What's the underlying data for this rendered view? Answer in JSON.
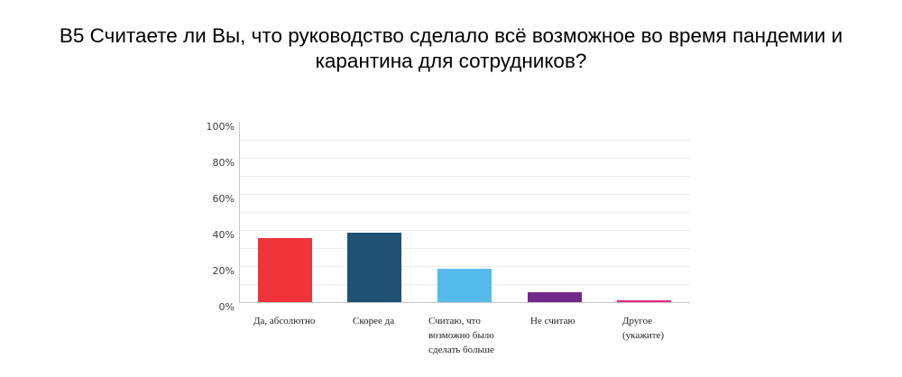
{
  "header": {
    "title_line1": "В5 Считаете ли Вы, что руководство сделало всё возможное во время пандемии и",
    "title_line2": "карантина для сотрудников?"
  },
  "y_axis": {
    "ticks": [
      "100%",
      "80%",
      "60%",
      "40%",
      "20%",
      "0%"
    ]
  },
  "x_axis": {
    "labels": [
      "Да, абсолютно",
      "Скорее да",
      "Считаю, что возможно было сделать больше",
      "Не считаю",
      "Другое (укажите)"
    ]
  },
  "colors": {
    "bar_1": "#ef343a",
    "bar_2": "#1f5175",
    "bar_3": "#55bbea",
    "bar_4": "#712a89",
    "bar_5": "#e5257d"
  },
  "chart_data": {
    "type": "bar",
    "title": "В5 Считаете ли Вы, что руководство сделало всё возможное во время пандемии и карантина для сотрудников?",
    "categories": [
      "Да, абсолютно",
      "Скорее да",
      "Считаю, что возможно было сделать больше",
      "Не считаю",
      "Другое (укажите)"
    ],
    "values": [
      35.5,
      38.5,
      18.6,
      5.5,
      1.0
    ],
    "colors": [
      "#ef343a",
      "#1f5175",
      "#55bbea",
      "#712a89",
      "#e5257d"
    ],
    "xlabel": "",
    "ylabel": "",
    "ylim": [
      0,
      100
    ],
    "yticks": [
      "0%",
      "20%",
      "40%",
      "60%",
      "80%",
      "100%"
    ],
    "grid": true,
    "legend": false
  }
}
